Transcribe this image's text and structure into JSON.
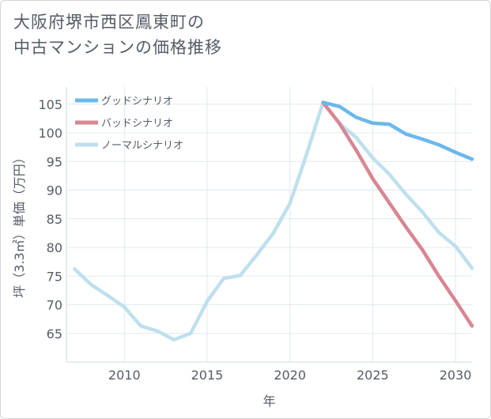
{
  "title_lines": [
    "大阪府堺市西区鳳東町の",
    "中古マンションの価格推移"
  ],
  "chart_data": {
    "type": "line",
    "xlabel": "年",
    "ylabel": "坪（3.3㎡）単価（万円）",
    "xlim": [
      2006.5,
      2031
    ],
    "ylim": [
      60,
      108
    ],
    "x_ticks": [
      2010,
      2015,
      2020,
      2025,
      2030
    ],
    "y_ticks": [
      65,
      70,
      75,
      80,
      85,
      90,
      95,
      100,
      105
    ],
    "grid": true,
    "legend_position": "top-left",
    "series": [
      {
        "name": "グッドシナリオ",
        "color": "#6cb8ec",
        "x": [
          2022,
          2023,
          2024,
          2025,
          2026,
          2027,
          2028,
          2029,
          2030,
          2031
        ],
        "y": [
          105.3,
          104.6,
          102.7,
          101.7,
          101.5,
          99.8,
          98.9,
          97.9,
          96.6,
          95.4
        ]
      },
      {
        "name": "バッドシナリオ",
        "color": "#d98593",
        "x": [
          2022,
          2023,
          2024,
          2025,
          2026,
          2027,
          2028,
          2029,
          2030,
          2031
        ],
        "y": [
          105.3,
          101.6,
          97.0,
          92.0,
          87.8,
          83.6,
          79.6,
          75.0,
          70.7,
          66.3
        ]
      },
      {
        "name": "ノーマルシナリオ",
        "color": "#bfdfee",
        "x": [
          2007,
          2008,
          2009,
          2010,
          2011,
          2012,
          2013,
          2014,
          2015,
          2016,
          2017,
          2018,
          2019,
          2020,
          2021,
          2022,
          2023,
          2024,
          2025,
          2026,
          2027,
          2028,
          2029,
          2030,
          2031
        ],
        "y": [
          76.2,
          73.5,
          71.6,
          69.6,
          66.3,
          65.4,
          63.9,
          65.0,
          70.6,
          74.6,
          75.1,
          78.7,
          82.5,
          87.7,
          96.2,
          105.3,
          101.6,
          99.2,
          95.6,
          92.8,
          89.3,
          86.2,
          82.6,
          80.2,
          76.4
        ]
      }
    ]
  }
}
